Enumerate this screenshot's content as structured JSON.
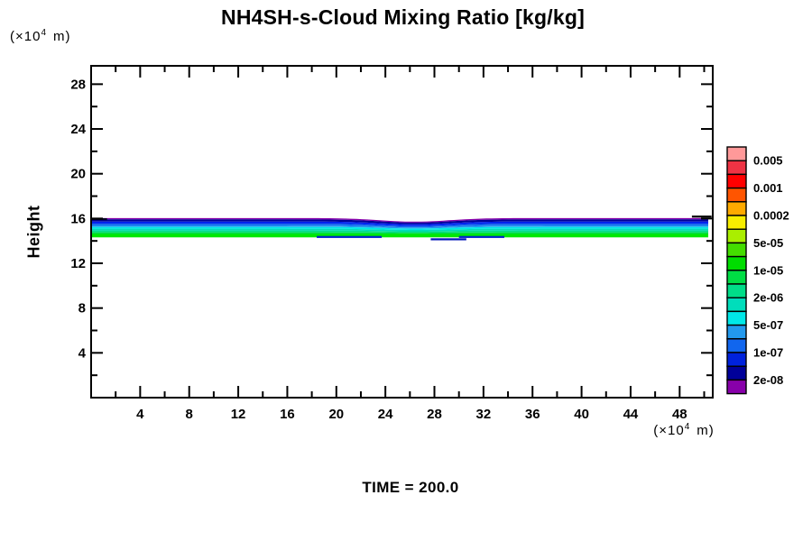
{
  "title": "NH4SH-s-Cloud Mixing Ratio [kg/kg]",
  "ylabel": "Height",
  "time_label": "TIME = 200.0",
  "units_label": {
    "prefix": "(×10",
    "exponent": "4",
    "suffix": "m)"
  },
  "chart_data": {
    "type": "filled_contour",
    "title": "NH4SH-s-Cloud Mixing Ratio [kg/kg]",
    "xlabel_units": "(×10^4 m)",
    "ylabel": "Height",
    "ylabel_units": "(×10^4 m)",
    "time_annotation": "TIME = 200.0",
    "grid": false,
    "legend_position": "right",
    "x_range": [
      0,
      50.7
    ],
    "y_range": [
      0,
      29.64
    ],
    "x_axis": {
      "major": [
        4,
        8,
        12,
        16,
        20,
        24,
        28,
        32,
        36,
        40,
        44,
        48
      ],
      "minor": [
        2,
        6,
        10,
        14,
        18,
        22,
        26,
        30,
        34,
        38,
        42,
        46,
        50
      ]
    },
    "y_axis": {
      "major": [
        4,
        8,
        12,
        16,
        20,
        24,
        28
      ],
      "minor": [
        2,
        6,
        10,
        14,
        18,
        22,
        26
      ]
    },
    "legend": {
      "labels": [
        "0.005",
        "0.001",
        "0.0002",
        "5e-05",
        "1e-05",
        "2e-06",
        "5e-07",
        "1e-07",
        "2e-08"
      ],
      "colors": [
        "#FF9999",
        "#EE3344",
        "#FF0000",
        "#FF5500",
        "#FFAA00",
        "#F8EE00",
        "#AAEE00",
        "#44DD00",
        "#00DD00",
        "#00DD44",
        "#00DD88",
        "#00DDBB",
        "#00E8E8",
        "#2299EE",
        "#1166EE",
        "#0022DD",
        "#000099",
        "#8800AA"
      ]
    },
    "band": {
      "description": "Thin horizontal cloud layer between heights ~14.3 and ~16.0 (x10^4 m); mixing ratio increases downward from 2e-08 (purple top edge) through blue/cyan to ~1e-05 (green bottom); slight downward dip near x = 26.",
      "boundaries": [
        16.04,
        15.92,
        15.73,
        15.54,
        15.38,
        15.25,
        15.09,
        14.93,
        14.77,
        14.62,
        14.31
      ],
      "colors": [
        "#8800AA",
        "#000099",
        "#0022EE",
        "#1166EE",
        "#2299EE",
        "#00E8E8",
        "#00DDBB",
        "#00DD88",
        "#00DD44",
        "#00E800"
      ],
      "dip": {
        "x_center": 26.4,
        "width": 4.0,
        "depth": 0.32
      },
      "dashes": [
        {
          "x1": 0.05,
          "x2": 1.3,
          "y": 15.95,
          "color": "#000022"
        },
        {
          "x1": 49.0,
          "x2": 50.6,
          "y": 16.18,
          "color": "#000000"
        },
        {
          "x1": 18.4,
          "x2": 23.7,
          "y": 14.36,
          "color": "#0022CC"
        },
        {
          "x1": 27.7,
          "x2": 30.6,
          "y": 14.15,
          "color": "#0011BB"
        },
        {
          "x1": 30.0,
          "x2": 33.7,
          "y": 14.36,
          "color": "#0022CC"
        }
      ]
    }
  }
}
